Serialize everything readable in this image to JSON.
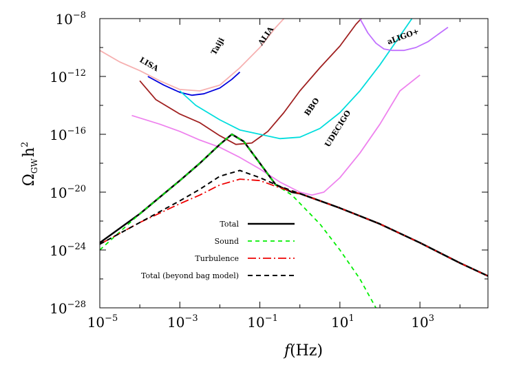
{
  "chart_data": {
    "type": "line",
    "xlabel": "f(Hz)",
    "ylabel": "Ω_GW h^2",
    "xscale": "log",
    "yscale": "log",
    "xlim_log10": [
      -5.0,
      4.7
    ],
    "ylim_log10": [
      -28,
      -8
    ],
    "x_ticks": [
      {
        "base": "10",
        "exp": "−5",
        "v": -5
      },
      {
        "base": "10",
        "exp": "−3",
        "v": -3
      },
      {
        "base": "10",
        "exp": "−1",
        "v": -1
      },
      {
        "base": "10",
        "exp": "1",
        "v": 1
      },
      {
        "base": "10",
        "exp": "3",
        "v": 3
      }
    ],
    "y_ticks": [
      {
        "base": "10",
        "exp": "−8",
        "v": -8
      },
      {
        "base": "10",
        "exp": "−12",
        "v": -12
      },
      {
        "base": "10",
        "exp": "−16",
        "v": -16
      },
      {
        "base": "10",
        "exp": "−20",
        "v": -20
      },
      {
        "base": "10",
        "exp": "−24",
        "v": -24
      },
      {
        "base": "10",
        "exp": "−28",
        "v": -28
      }
    ],
    "grid": false,
    "legend_position": "lower-center",
    "signal_series": [
      {
        "name": "Total",
        "color": "#000000",
        "dash": "solid",
        "width": 2.5,
        "points_log10": [
          [
            -5,
            -23.5
          ],
          [
            -4,
            -21.5
          ],
          [
            -3,
            -19.2
          ],
          [
            -2.5,
            -18.0
          ],
          [
            -2.0,
            -16.7
          ],
          [
            -1.7,
            -16.0
          ],
          [
            -1.4,
            -16.5
          ],
          [
            -1.0,
            -18.0
          ],
          [
            -0.6,
            -19.5
          ],
          [
            -0.2,
            -20.0
          ],
          [
            0,
            -20.1
          ],
          [
            1,
            -21.1
          ],
          [
            2,
            -22.2
          ],
          [
            3,
            -23.5
          ],
          [
            4,
            -24.9
          ],
          [
            4.7,
            -25.8
          ]
        ]
      },
      {
        "name": "Sound",
        "color": "#00ee00",
        "dash": "6,5",
        "width": 1.8,
        "points_log10": [
          [
            -5,
            -24.0
          ],
          [
            -4,
            -21.5
          ],
          [
            -3,
            -19.2
          ],
          [
            -2.5,
            -18.0
          ],
          [
            -2.0,
            -16.7
          ],
          [
            -1.7,
            -16.0
          ],
          [
            -1.4,
            -16.5
          ],
          [
            -1.0,
            -18.0
          ],
          [
            -0.6,
            -19.5
          ],
          [
            -0.2,
            -20.2
          ],
          [
            0.5,
            -22.2
          ],
          [
            1.0,
            -24.0
          ],
          [
            1.5,
            -26.0
          ],
          [
            1.9,
            -28.0
          ]
        ]
      },
      {
        "name": "Turbulence",
        "color": "#ee0000",
        "dash": "12,4,2,4",
        "width": 1.8,
        "points_log10": [
          [
            -5,
            -23.6
          ],
          [
            -4,
            -22.1
          ],
          [
            -3,
            -20.8
          ],
          [
            -2.5,
            -20.2
          ],
          [
            -2.0,
            -19.5
          ],
          [
            -1.5,
            -19.1
          ],
          [
            -1.0,
            -19.2
          ],
          [
            -0.5,
            -19.7
          ],
          [
            0,
            -20.1
          ],
          [
            1,
            -21.1
          ],
          [
            2,
            -22.2
          ],
          [
            3,
            -23.5
          ],
          [
            4,
            -24.9
          ],
          [
            4.7,
            -25.8
          ]
        ]
      },
      {
        "name": "Total (beyond bag model)",
        "color": "#000000",
        "dash": "7,5",
        "width": 2.0,
        "points_log10": [
          [
            -5,
            -23.6
          ],
          [
            -4,
            -22.1
          ],
          [
            -3,
            -20.6
          ],
          [
            -2.5,
            -19.8
          ],
          [
            -2.0,
            -18.9
          ],
          [
            -1.5,
            -18.5
          ],
          [
            -1.0,
            -19.0
          ],
          [
            -0.5,
            -19.6
          ],
          [
            0,
            -20.1
          ],
          [
            1,
            -21.1
          ],
          [
            2,
            -22.2
          ],
          [
            3,
            -23.5
          ],
          [
            4,
            -24.9
          ],
          [
            4.7,
            -25.8
          ]
        ]
      }
    ],
    "sensitivity_curves": [
      {
        "name": "LISA",
        "color": "#0000dd",
        "points_log10": [
          [
            -3.8,
            -12.0
          ],
          [
            -3.4,
            -12.6
          ],
          [
            -3.0,
            -13.1
          ],
          [
            -2.7,
            -13.3
          ],
          [
            -2.4,
            -13.2
          ],
          [
            -2.0,
            -12.8
          ],
          [
            -1.7,
            -12.2
          ],
          [
            -1.5,
            -11.7
          ]
        ]
      },
      {
        "name": "Taiji",
        "color": "#f6b0b0",
        "points_log10": [
          [
            -5,
            -10.2
          ],
          [
            -4.5,
            -11.0
          ],
          [
            -4.0,
            -11.6
          ],
          [
            -3.5,
            -12.3
          ],
          [
            -3.0,
            -12.9
          ],
          [
            -2.5,
            -13.0
          ],
          [
            -2.0,
            -12.6
          ],
          [
            -1.5,
            -11.4
          ],
          [
            -1.0,
            -10.0
          ],
          [
            -0.6,
            -8.6
          ],
          [
            -0.4,
            -8.0
          ]
        ]
      },
      {
        "name": "ALIA",
        "color": "#a02020",
        "points_log10": [
          [
            -4.0,
            -12.3
          ],
          [
            -3.6,
            -13.6
          ],
          [
            -3.0,
            -14.6
          ],
          [
            -2.5,
            -15.2
          ],
          [
            -2.0,
            -16.1
          ],
          [
            -1.6,
            -16.7
          ],
          [
            -1.2,
            -16.6
          ],
          [
            -0.8,
            -15.8
          ],
          [
            -0.4,
            -14.5
          ],
          [
            0.0,
            -13.0
          ],
          [
            0.5,
            -11.4
          ],
          [
            1.0,
            -9.9
          ],
          [
            1.4,
            -8.4
          ],
          [
            1.6,
            -7.8
          ]
        ]
      },
      {
        "name": "BBO",
        "color": "#00dddd",
        "points_log10": [
          [
            -3.0,
            -13.0
          ],
          [
            -2.6,
            -14.0
          ],
          [
            -2.0,
            -15.0
          ],
          [
            -1.5,
            -15.7
          ],
          [
            -1.0,
            -16.0
          ],
          [
            -0.5,
            -16.3
          ],
          [
            0,
            -16.2
          ],
          [
            0.5,
            -15.6
          ],
          [
            1.0,
            -14.5
          ],
          [
            1.5,
            -13.0
          ],
          [
            2.0,
            -11.2
          ],
          [
            2.5,
            -9.2
          ],
          [
            2.8,
            -8.0
          ]
        ]
      },
      {
        "name": "UDECIGO",
        "color": "#ee82ee",
        "points_log10": [
          [
            -4.2,
            -14.7
          ],
          [
            -3.5,
            -15.3
          ],
          [
            -3.0,
            -15.8
          ],
          [
            -2.5,
            -16.4
          ],
          [
            -2.0,
            -16.9
          ],
          [
            -1.5,
            -17.6
          ],
          [
            -1.0,
            -18.4
          ],
          [
            -0.5,
            -19.3
          ],
          [
            0,
            -20.0
          ],
          [
            0.3,
            -20.2
          ],
          [
            0.6,
            -20.0
          ],
          [
            1.0,
            -19.0
          ],
          [
            1.5,
            -17.3
          ],
          [
            2.0,
            -15.3
          ],
          [
            2.5,
            -13.0
          ],
          [
            3.0,
            -11.9
          ]
        ]
      },
      {
        "name": "aLIGO+",
        "color": "#c070ff",
        "points_log10": [
          [
            1.5,
            -8.0
          ],
          [
            1.7,
            -9.0
          ],
          [
            1.9,
            -9.7
          ],
          [
            2.1,
            -10.1
          ],
          [
            2.3,
            -10.2
          ],
          [
            2.6,
            -10.2
          ],
          [
            2.9,
            -10.0
          ],
          [
            3.2,
            -9.6
          ],
          [
            3.5,
            -9.0
          ],
          [
            3.7,
            -8.6
          ]
        ]
      }
    ],
    "annotations": [
      {
        "text": "LISA",
        "x_log10": -3.8,
        "y_log10": -11.3,
        "angle": 30
      },
      {
        "text": "Taiji",
        "x_log10": -2.0,
        "y_log10": -10.0,
        "angle": -60
      },
      {
        "text": "ALIA",
        "x_log10": -0.8,
        "y_log10": -9.3,
        "angle": -55
      },
      {
        "text": "BBO",
        "x_log10": 0.35,
        "y_log10": -14.2,
        "angle": -55
      },
      {
        "text": "UDECIGO",
        "x_log10": 1.0,
        "y_log10": -15.7,
        "angle": -58
      },
      {
        "text": "aLIGO+",
        "x_log10": 2.6,
        "y_log10": -9.4,
        "angle": -20
      }
    ]
  }
}
